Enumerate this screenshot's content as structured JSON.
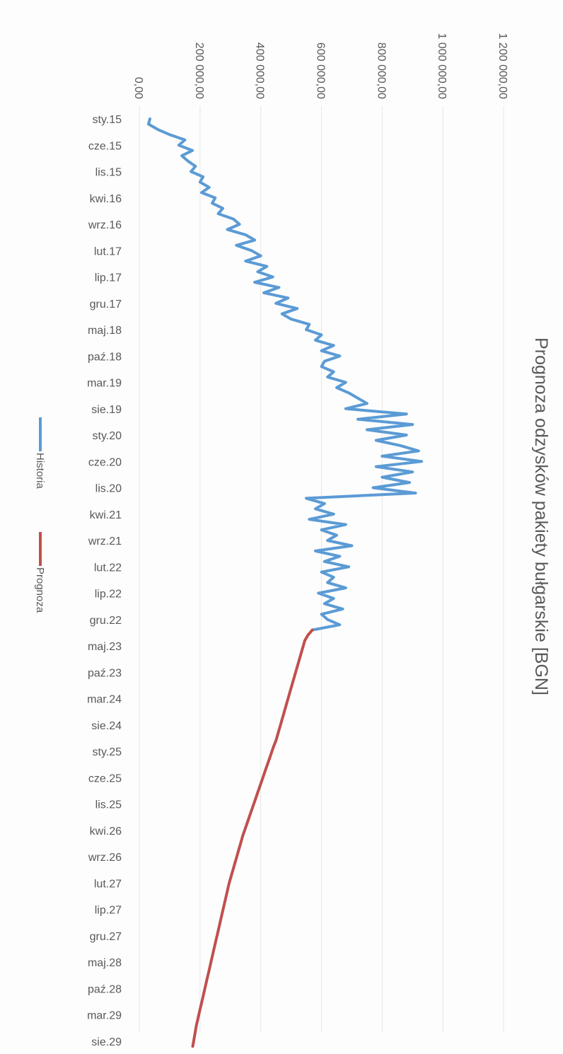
{
  "chart_data": {
    "type": "line",
    "title": "Prognoza odzysków pakiety bułgarskie [BGN]",
    "xlabel": "",
    "ylabel": "",
    "ylim": [
      0,
      1200000
    ],
    "y_ticks": [
      "0,00",
      "200 000,00",
      "400 000,00",
      "600 000,00",
      "800 000,00",
      "1 000 000,00",
      "1 200 000,00"
    ],
    "category_labels": [
      "sty.15",
      "cze.15",
      "lis.15",
      "kwi.16",
      "wrz.16",
      "lut.17",
      "lip.17",
      "gru.17",
      "maj.18",
      "paź.18",
      "mar.19",
      "sie.19",
      "sty.20",
      "cze.20",
      "lis.20",
      "kwi.21",
      "wrz.21",
      "lut.22",
      "lip.22",
      "gru.22",
      "maj.23",
      "paź.23",
      "mar.24",
      "sie.24",
      "sty.25",
      "cze.25",
      "lis.25",
      "kwi.26",
      "wrz.26",
      "lut.27",
      "lip.27",
      "gru.27",
      "maj.28",
      "paź.28",
      "mar.29",
      "sie.29"
    ],
    "n_points": 177,
    "grid": true,
    "legend_position": "bottom",
    "series": [
      {
        "name": "Historia",
        "color": "#5b9bd5",
        "start_index": 0,
        "values": [
          35000,
          30000,
          60000,
          100000,
          150000,
          130000,
          175000,
          140000,
          160000,
          185000,
          170000,
          210000,
          200000,
          230000,
          205000,
          250000,
          240000,
          275000,
          260000,
          310000,
          330000,
          290000,
          350000,
          380000,
          320000,
          370000,
          400000,
          350000,
          420000,
          390000,
          440000,
          380000,
          460000,
          410000,
          490000,
          450000,
          520000,
          470000,
          500000,
          560000,
          550000,
          600000,
          580000,
          640000,
          600000,
          660000,
          610000,
          600000,
          640000,
          620000,
          680000,
          650000,
          690000,
          720000,
          750000,
          680000,
          880000,
          720000,
          900000,
          750000,
          880000,
          780000,
          860000,
          920000,
          800000,
          930000,
          780000,
          900000,
          800000,
          890000,
          770000,
          910000,
          550000,
          610000,
          580000,
          640000,
          560000,
          680000,
          600000,
          650000,
          620000,
          700000,
          580000,
          660000,
          610000,
          690000,
          600000,
          640000,
          620000,
          680000,
          590000,
          640000,
          610000,
          670000,
          600000,
          620000,
          660000,
          570000
        ]
      },
      {
        "name": "Prognoza",
        "color": "#c0504d",
        "start_index": 97,
        "values": [
          570000,
          555000,
          545000,
          540000,
          535000,
          530000,
          525000,
          520000,
          515000,
          510000,
          505000,
          500000,
          495000,
          490000,
          485000,
          480000,
          475000,
          470000,
          465000,
          460000,
          455000,
          450000,
          443000,
          437000,
          431000,
          425000,
          419000,
          413000,
          407000,
          401000,
          395000,
          389000,
          383000,
          377000,
          371000,
          365000,
          359000,
          353000,
          347000,
          341000,
          336000,
          331000,
          326000,
          321000,
          316000,
          311000,
          306000,
          301000,
          296000,
          292000,
          288000,
          284000,
          280000,
          276000,
          272000,
          268000,
          264000,
          260000,
          256000,
          252000,
          248000,
          244000,
          240000,
          236000,
          232000,
          228000,
          224000,
          220000,
          216000,
          212000,
          208000,
          204000,
          200000,
          196000,
          192000,
          188000,
          185000,
          182000,
          179000,
          176000
        ]
      }
    ]
  }
}
